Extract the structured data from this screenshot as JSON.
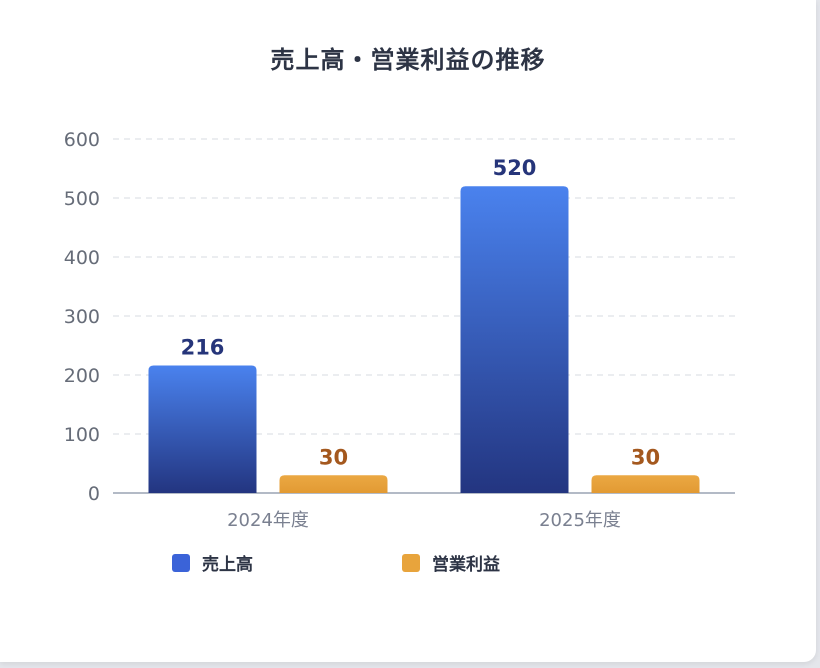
{
  "chart_data": {
    "type": "bar",
    "title": "売上高・営業利益の推移",
    "categories": [
      "2024年度",
      "2025年度"
    ],
    "series": [
      {
        "name": "売上高",
        "values": [
          216,
          520
        ],
        "color": "#3b63d8",
        "label_color": "#26357a"
      },
      {
        "name": "営業利益",
        "values": [
          30,
          30
        ],
        "color": "#e8a43c",
        "label_color": "#a4581e"
      }
    ],
    "ylim": [
      0,
      600
    ],
    "yticks": [
      0,
      100,
      200,
      300,
      400,
      500,
      600
    ],
    "grid": true,
    "legend": "bottom"
  }
}
